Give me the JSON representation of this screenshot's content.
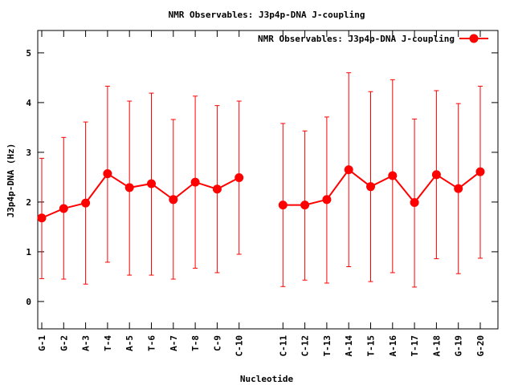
{
  "chart_data": {
    "type": "line",
    "title": "NMR Observables: J3p4p-DNA J-coupling",
    "xlabel": "Nucleotide",
    "ylabel": "J3p4p-DNA (Hz)",
    "ylim": [
      -0.55,
      5.45
    ],
    "yticks": [
      0,
      1,
      2,
      3,
      4,
      5
    ],
    "legend_position": "top-right",
    "grid": false,
    "color": "#ff0000",
    "series": [
      {
        "name": "NMR Observables: J3p4p-DNA J-coupling",
        "segments": [
          {
            "categories": [
              "G-1",
              "G-2",
              "A-3",
              "T-4",
              "A-5",
              "T-6",
              "A-7",
              "T-8",
              "C-9",
              "C-10"
            ],
            "values": [
              1.68,
              1.87,
              1.98,
              2.57,
              2.29,
              2.37,
              2.05,
              2.4,
              2.26,
              2.49
            ],
            "err_low": [
              0.46,
              0.45,
              0.35,
              0.79,
              0.53,
              0.53,
              0.45,
              0.67,
              0.58,
              0.95
            ],
            "err_high": [
              2.88,
              3.3,
              3.61,
              4.33,
              4.03,
              4.19,
              3.66,
              4.13,
              3.94,
              4.03
            ]
          },
          {
            "categories": [
              "C-11",
              "C-12",
              "T-13",
              "A-14",
              "T-15",
              "A-16",
              "T-17",
              "A-18",
              "G-19",
              "G-20"
            ],
            "values": [
              1.94,
              1.94,
              2.05,
              2.65,
              2.31,
              2.53,
              1.99,
              2.55,
              2.27,
              2.61
            ],
            "err_low": [
              0.3,
              0.43,
              0.37,
              0.7,
              0.4,
              0.58,
              0.29,
              0.86,
              0.56,
              0.87
            ],
            "err_high": [
              3.58,
              3.43,
              3.71,
              4.6,
              4.22,
              4.46,
              3.67,
              4.24,
              3.98,
              4.33
            ]
          }
        ]
      }
    ]
  }
}
